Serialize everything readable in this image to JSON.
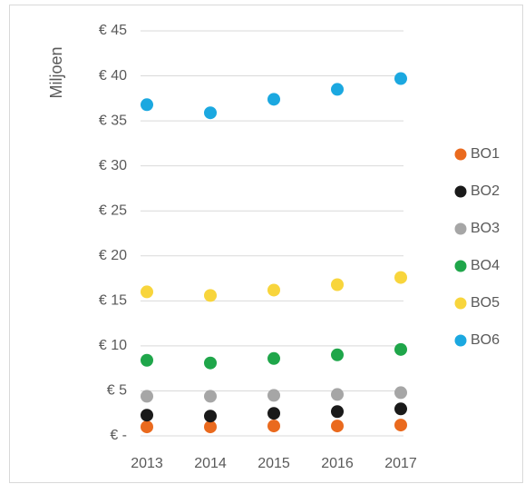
{
  "chart_data": {
    "type": "scatter",
    "y_axis_label": "Miljoen",
    "categories": [
      "2013",
      "2014",
      "2015",
      "2016",
      "2017"
    ],
    "series": [
      {
        "name": "BO1",
        "color": "#ea6a1e",
        "values": [
          1.0,
          1.0,
          1.1,
          1.1,
          1.2
        ]
      },
      {
        "name": "BO2",
        "color": "#1a1a1a",
        "values": [
          2.3,
          2.2,
          2.5,
          2.7,
          3.0
        ]
      },
      {
        "name": "BO3",
        "color": "#a6a6a6",
        "values": [
          4.4,
          4.4,
          4.5,
          4.6,
          4.8
        ]
      },
      {
        "name": "BO4",
        "color": "#1fa64a",
        "values": [
          8.4,
          8.1,
          8.6,
          9.0,
          9.6
        ]
      },
      {
        "name": "BO5",
        "color": "#f8d53c",
        "values": [
          16.0,
          15.6,
          16.2,
          16.8,
          17.6
        ]
      },
      {
        "name": "BO6",
        "color": "#1ba8e0",
        "values": [
          36.8,
          35.9,
          37.4,
          38.5,
          39.7
        ]
      }
    ],
    "ylim": [
      0,
      45
    ],
    "yticks": [
      {
        "value": 0,
        "label": "€ -"
      },
      {
        "value": 5,
        "label": "€ 5"
      },
      {
        "value": 10,
        "label": "€ 10"
      },
      {
        "value": 15,
        "label": "€ 15"
      },
      {
        "value": 20,
        "label": "€ 20"
      },
      {
        "value": 25,
        "label": "€ 25"
      },
      {
        "value": 30,
        "label": "€ 30"
      },
      {
        "value": 35,
        "label": "€ 35"
      },
      {
        "value": 40,
        "label": "€ 40"
      },
      {
        "value": 45,
        "label": "€ 45"
      }
    ],
    "grid": true,
    "legend": "right"
  }
}
